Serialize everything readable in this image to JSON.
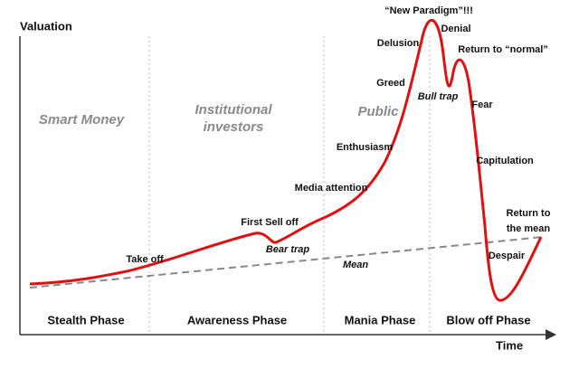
{
  "axes": {
    "y_label": "Valuation",
    "x_label": "Time"
  },
  "phases": [
    "Stealth Phase",
    "Awareness Phase",
    "Mania Phase",
    "Blow off Phase"
  ],
  "groups": {
    "smart_money": "Smart Money",
    "institutional": [
      "Institutional",
      "investors"
    ],
    "public": "Public"
  },
  "annotations": {
    "take_off": "Take off",
    "first_sell_off": "First Sell off",
    "bear_trap": "Bear trap",
    "mean": "Mean",
    "media_attention": "Media attention",
    "enthusiasm": "Enthusiasm",
    "greed": "Greed",
    "delusion": "Delusion",
    "new_paradigm": "“New Paradigm”!!!",
    "denial": "Denial",
    "return_to_normal": "Return to “normal”",
    "bull_trap": "Bull trap",
    "fear": "Fear",
    "capitulation": "Capitulation",
    "return_to_mean": [
      "Return to",
      "the mean"
    ],
    "despair": "Despair"
  }
}
